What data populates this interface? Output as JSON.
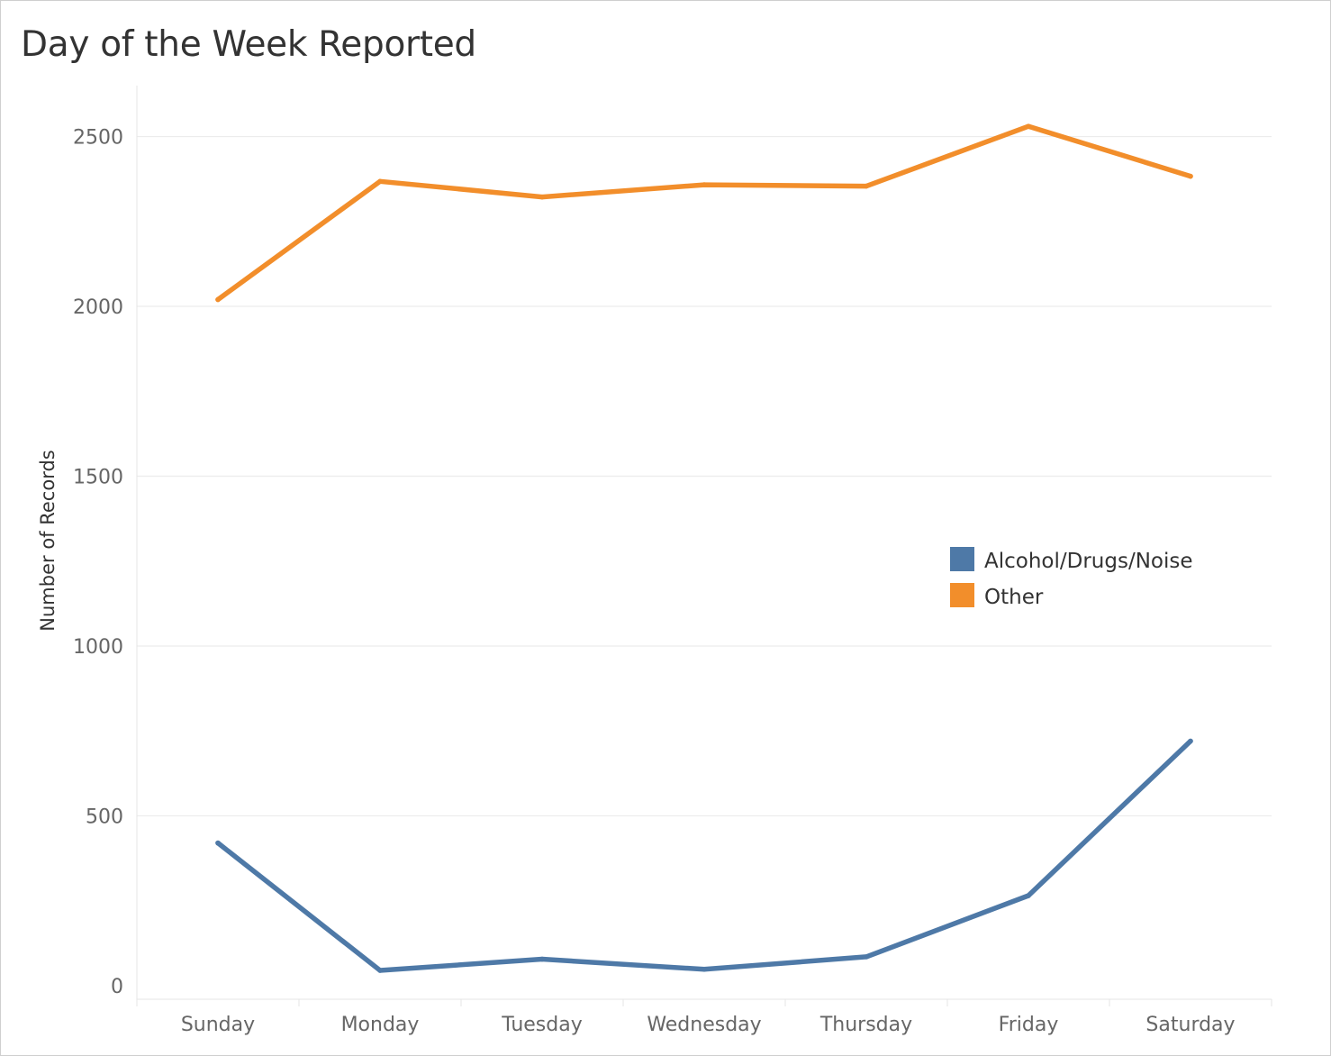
{
  "chart_data": {
    "type": "line",
    "title": "Day of the Week Reported",
    "xlabel": "",
    "ylabel": "Number of Records",
    "categories": [
      "Sunday",
      "Monday",
      "Tuesday",
      "Wednesday",
      "Thursday",
      "Friday",
      "Saturday"
    ],
    "series": [
      {
        "name": "Alcohol/Drugs/Noise",
        "color": "#4e79a7",
        "values": [
          420,
          45,
          78,
          48,
          85,
          265,
          720
        ]
      },
      {
        "name": "Other",
        "color": "#f28e2b",
        "values": [
          2020,
          2368,
          2322,
          2358,
          2354,
          2530,
          2383
        ]
      }
    ],
    "ylim": [
      -40,
      2650
    ],
    "yticks": [
      0,
      500,
      1000,
      1500,
      2000,
      2500
    ],
    "ytick_labels": [
      "0",
      "500",
      "1000",
      "1500",
      "2000",
      "2500"
    ],
    "grid": true,
    "legend_position": "right"
  }
}
